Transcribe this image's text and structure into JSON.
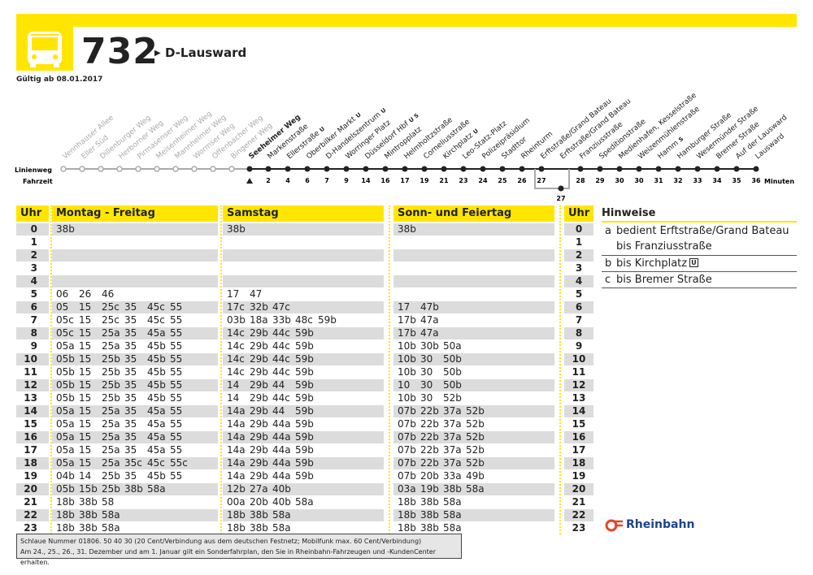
{
  "header": {
    "route": "732",
    "destination": "D-Lausward",
    "valid": "Gültig ab 08.01.2017"
  },
  "route": {
    "label_route": "Linienweg",
    "label_time": "Fahrzeit",
    "unit": "Minuten",
    "past_stops": [
      "Vennhauser Allee",
      "Eller Süd",
      "Dillenburger Weg",
      "Herborner Weg",
      "Pirmasenser Weg",
      "Meisenheimer Weg",
      "Mannheimer Weg",
      "Wormser Weg",
      "Offenbacher Weg",
      "Bingener Weg"
    ],
    "start_stop": "Seeheimer Weg",
    "stops": [
      {
        "name": "Markenstraße",
        "time": 2
      },
      {
        "name": "Ellerstraße",
        "badge": "U",
        "time": 4
      },
      {
        "name": "Oberbilker Markt",
        "badge": "U",
        "time": 6
      },
      {
        "name": "D-Handelszentrum",
        "badge": "U",
        "time": 7
      },
      {
        "name": "Worringer Platz",
        "time": 9
      },
      {
        "name": "Düsseldorf Hbf",
        "badge": "U S",
        "time": 14
      },
      {
        "name": "Mintropplatz",
        "time": 16
      },
      {
        "name": "Helmholtzstraße",
        "time": 17
      },
      {
        "name": "Corneliusstraße",
        "time": 19
      },
      {
        "name": "Kirchplatz",
        "badge": "U",
        "time": 21
      },
      {
        "name": "Leo-Statz-Platz",
        "time": 23
      },
      {
        "name": "Polizeipräsidium",
        "time": 24
      },
      {
        "name": "Stadttor",
        "time": 25
      },
      {
        "name": "Rheinturm",
        "time": 26
      },
      {
        "name": "Erftstraße/Grand Bateau",
        "time": 27
      },
      {
        "name": "Erftstraße/Grand Bateau",
        "time": 27,
        "branch": true
      },
      {
        "name": "Franziusstraße",
        "time": 28
      },
      {
        "name": "Speditionstraße",
        "time": 29
      },
      {
        "name": "Medienhafen, Kesselstraße",
        "time": 30
      },
      {
        "name": "Weizenmühlenstraße",
        "time": 30
      },
      {
        "name": "Hamm",
        "badge": "S",
        "time": 31
      },
      {
        "name": "Hamburger Straße",
        "time": 32
      },
      {
        "name": "Wesermünder Straße",
        "time": 33
      },
      {
        "name": "Bremer Straße",
        "time": 34
      },
      {
        "name": "Auf der Lausward",
        "time": 35
      },
      {
        "name": "Lausward",
        "time": 36
      }
    ]
  },
  "timetable": {
    "headers": {
      "hour": "Uhr",
      "weekday": "Montag - Freitag",
      "saturday": "Samstag",
      "sunday": "Sonn- und Feiertag"
    },
    "rows": [
      {
        "hour": "0",
        "weekday": [
          "38b"
        ],
        "saturday": [
          "38b"
        ],
        "sunday": [
          "38b"
        ]
      },
      {
        "hour": "1",
        "weekday": [],
        "saturday": [],
        "sunday": []
      },
      {
        "hour": "2",
        "weekday": [],
        "saturday": [],
        "sunday": []
      },
      {
        "hour": "3",
        "weekday": [],
        "saturday": [],
        "sunday": []
      },
      {
        "hour": "4",
        "weekday": [],
        "saturday": [],
        "sunday": []
      },
      {
        "hour": "5",
        "weekday": [
          "06",
          "26",
          "46"
        ],
        "saturday": [
          "17",
          "47"
        ],
        "sunday": []
      },
      {
        "hour": "6",
        "weekday": [
          "05",
          "15",
          "25c",
          "35",
          "45c",
          "55"
        ],
        "saturday": [
          "17c",
          "32b",
          "47c"
        ],
        "sunday": [
          "17",
          "47b"
        ]
      },
      {
        "hour": "7",
        "weekday": [
          "05c",
          "15",
          "25c",
          "35",
          "45c",
          "55"
        ],
        "saturday": [
          "03b",
          "18a",
          "33b",
          "48c",
          "59b"
        ],
        "sunday": [
          "17b",
          "47a"
        ]
      },
      {
        "hour": "8",
        "weekday": [
          "05c",
          "15",
          "25a",
          "35",
          "45a",
          "55"
        ],
        "saturday": [
          "14c",
          "29b",
          "44c",
          "59b"
        ],
        "sunday": [
          "17b",
          "47a"
        ]
      },
      {
        "hour": "9",
        "weekday": [
          "05a",
          "15",
          "25a",
          "35",
          "45b",
          "55"
        ],
        "saturday": [
          "14c",
          "29b",
          "44c",
          "59b"
        ],
        "sunday": [
          "10b",
          "30b",
          "50a"
        ]
      },
      {
        "hour": "10",
        "weekday": [
          "05b",
          "15",
          "25b",
          "35",
          "45b",
          "55"
        ],
        "saturday": [
          "14c",
          "29b",
          "44c",
          "59b"
        ],
        "sunday": [
          "10b",
          "30",
          "50b"
        ]
      },
      {
        "hour": "11",
        "weekday": [
          "05b",
          "15",
          "25b",
          "35",
          "45b",
          "55"
        ],
        "saturday": [
          "14c",
          "29b",
          "44c",
          "59b"
        ],
        "sunday": [
          "10b",
          "30",
          "50b"
        ]
      },
      {
        "hour": "12",
        "weekday": [
          "05b",
          "15",
          "25b",
          "35",
          "45b",
          "55"
        ],
        "saturday": [
          "14",
          "29b",
          "44",
          "59b"
        ],
        "sunday": [
          "10",
          "30",
          "50b"
        ]
      },
      {
        "hour": "13",
        "weekday": [
          "05b",
          "15",
          "25b",
          "35",
          "45b",
          "55"
        ],
        "saturday": [
          "14",
          "29b",
          "44c",
          "59b"
        ],
        "sunday": [
          "10b",
          "30",
          "52b"
        ]
      },
      {
        "hour": "14",
        "weekday": [
          "05a",
          "15",
          "25a",
          "35",
          "45a",
          "55"
        ],
        "saturday": [
          "14a",
          "29b",
          "44",
          "59b"
        ],
        "sunday": [
          "07b",
          "22b",
          "37a",
          "52b"
        ]
      },
      {
        "hour": "15",
        "weekday": [
          "05a",
          "15",
          "25a",
          "35",
          "45a",
          "55"
        ],
        "saturday": [
          "14a",
          "29b",
          "44a",
          "59b"
        ],
        "sunday": [
          "07b",
          "22b",
          "37a",
          "52b"
        ]
      },
      {
        "hour": "16",
        "weekday": [
          "05a",
          "15",
          "25a",
          "35",
          "45a",
          "55"
        ],
        "saturday": [
          "14a",
          "29b",
          "44a",
          "59b"
        ],
        "sunday": [
          "07b",
          "22b",
          "37a",
          "52b"
        ]
      },
      {
        "hour": "17",
        "weekday": [
          "05a",
          "15",
          "25a",
          "35",
          "45a",
          "55"
        ],
        "saturday": [
          "14a",
          "29b",
          "44a",
          "59b"
        ],
        "sunday": [
          "07b",
          "22b",
          "37a",
          "52b"
        ]
      },
      {
        "hour": "18",
        "weekday": [
          "05a",
          "15",
          "25a",
          "35c",
          "45c",
          "55c"
        ],
        "saturday": [
          "14a",
          "29b",
          "44a",
          "59b"
        ],
        "sunday": [
          "07b",
          "22b",
          "37a",
          "52b"
        ]
      },
      {
        "hour": "19",
        "weekday": [
          "04b",
          "14",
          "25b",
          "35",
          "45b",
          "55"
        ],
        "saturday": [
          "14a",
          "29b",
          "44a",
          "59b"
        ],
        "sunday": [
          "07b",
          "20b",
          "33a",
          "49b"
        ]
      },
      {
        "hour": "20",
        "weekday": [
          "05b",
          "15b",
          "25b",
          "38b",
          "58a"
        ],
        "saturday": [
          "12b",
          "27a",
          "40b"
        ],
        "sunday": [
          "03a",
          "19b",
          "38b",
          "58a"
        ]
      },
      {
        "hour": "21",
        "weekday": [
          "18b",
          "38b",
          "58"
        ],
        "saturday": [
          "00a",
          "20b",
          "40b",
          "58a"
        ],
        "sunday": [
          "18b",
          "38b",
          "58a"
        ]
      },
      {
        "hour": "22",
        "weekday": [
          "18b",
          "38b",
          "58a"
        ],
        "saturday": [
          "18b",
          "38b",
          "58a"
        ],
        "sunday": [
          "18b",
          "38b",
          "58a"
        ]
      },
      {
        "hour": "23",
        "weekday": [
          "18b",
          "38b",
          "58a"
        ],
        "saturday": [
          "18b",
          "38b",
          "58a"
        ],
        "sunday": [
          "18b",
          "38b",
          "58a"
        ]
      }
    ]
  },
  "notes": {
    "title": "Hinweise",
    "items": [
      {
        "key": "a",
        "text": "bedient Erftstraße/Grand Bateau bis Franziusstraße"
      },
      {
        "key": "b",
        "text": "bis Kirchplatz",
        "badge": "U"
      },
      {
        "key": "c",
        "text": "bis Bremer Straße"
      }
    ]
  },
  "footer": {
    "lines": [
      "Schlaue Nummer 01806. 50 40 30 (20 Cent/Verbindung aus dem deutschen Festnetz; Mobilfunk max. 60 Cent/Verbindung)",
      "Am 24., 25., 26., 31. Dezember und am 1. Januar gilt ein Sonderfahrplan, den Sie in Rheinbahn-Fahrzeugen und -KundenCenter erhalten."
    ],
    "logo": "Rheinbahn"
  }
}
